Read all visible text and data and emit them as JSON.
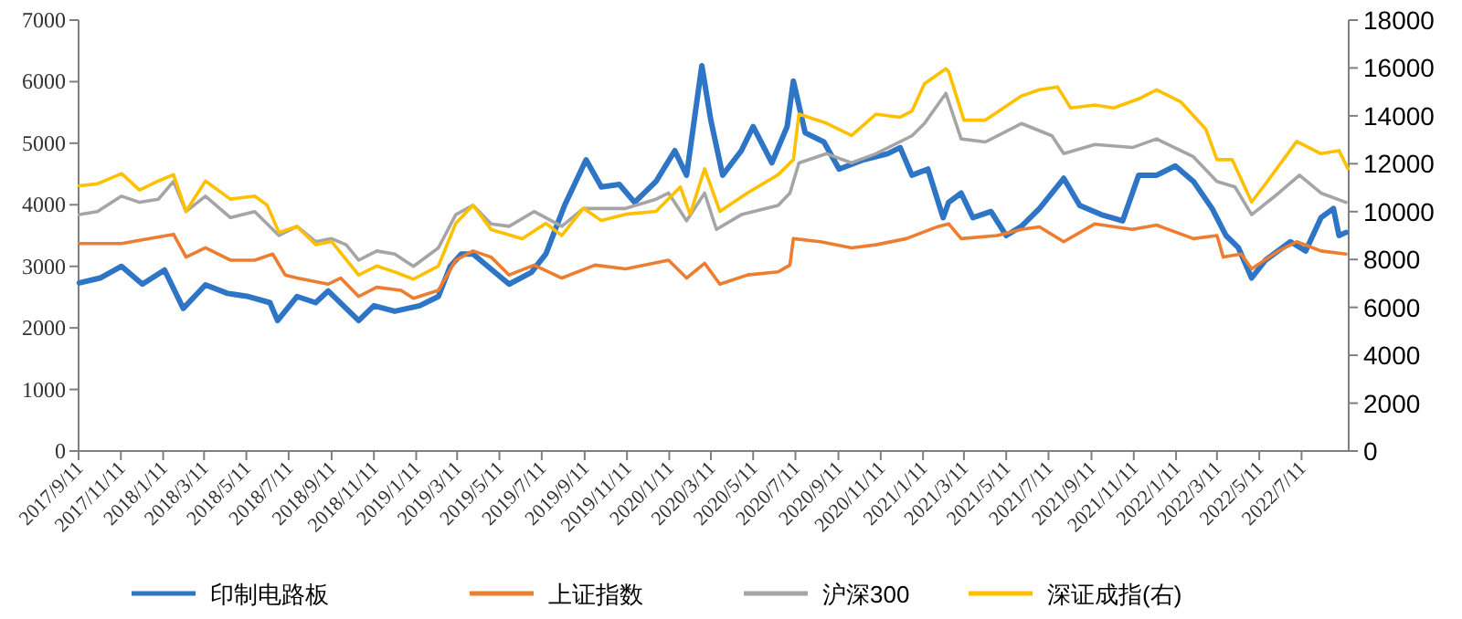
{
  "chart_data": {
    "type": "line",
    "xlim": [
      "2017-09-11",
      "2022-09-17"
    ],
    "xticks": [
      {
        "value": "2017-09-11",
        "label": "2017/9/11"
      },
      {
        "value": "2017-11-11",
        "label": "2017/11/11"
      },
      {
        "value": "2018-01-11",
        "label": "2018/1/11"
      },
      {
        "value": "2018-03-11",
        "label": "2018/3/11"
      },
      {
        "value": "2018-05-11",
        "label": "2018/5/11"
      },
      {
        "value": "2018-07-11",
        "label": "2018/7/11"
      },
      {
        "value": "2018-09-11",
        "label": "2018/9/11"
      },
      {
        "value": "2018-11-11",
        "label": "2018/11/11"
      },
      {
        "value": "2019-01-11",
        "label": "2019/1/11"
      },
      {
        "value": "2019-03-11",
        "label": "2019/3/11"
      },
      {
        "value": "2019-05-11",
        "label": "2019/5/11"
      },
      {
        "value": "2019-07-11",
        "label": "2019/7/11"
      },
      {
        "value": "2019-09-11",
        "label": "2019/9/11"
      },
      {
        "value": "2019-11-11",
        "label": "2019/11/11"
      },
      {
        "value": "2020-01-11",
        "label": "2020/1/11"
      },
      {
        "value": "2020-03-11",
        "label": "2020/3/11"
      },
      {
        "value": "2020-05-11",
        "label": "2020/5/11"
      },
      {
        "value": "2020-07-11",
        "label": "2020/7/11"
      },
      {
        "value": "2020-09-11",
        "label": "2020/9/11"
      },
      {
        "value": "2020-11-11",
        "label": "2020/11/11"
      },
      {
        "value": "2021-01-11",
        "label": "2021/1/11"
      },
      {
        "value": "2021-03-11",
        "label": "2021/3/11"
      },
      {
        "value": "2021-05-11",
        "label": "2021/5/11"
      },
      {
        "value": "2021-07-11",
        "label": "2021/7/11"
      },
      {
        "value": "2021-09-11",
        "label": "2021/9/11"
      },
      {
        "value": "2021-11-11",
        "label": "2021/11/11"
      },
      {
        "value": "2022-01-11",
        "label": "2022/1/11"
      },
      {
        "value": "2022-03-11",
        "label": "2022/3/11"
      },
      {
        "value": "2022-05-11",
        "label": "2022/5/11"
      },
      {
        "value": "2022-07-11",
        "label": "2022/7/11"
      }
    ],
    "ylim": [
      0,
      7000
    ],
    "yticks": [
      0,
      1000,
      2000,
      3000,
      4000,
      5000,
      6000,
      7000
    ],
    "y2lim": [
      0,
      18000
    ],
    "y2ticks": [
      0,
      2000,
      4000,
      6000,
      8000,
      10000,
      12000,
      14000,
      16000,
      18000
    ],
    "grid": false,
    "legend": "bottom",
    "marker": "none",
    "line_style": "solid",
    "series": [
      {
        "name": "印制电路板",
        "color": "#2e75c6",
        "x": [
          "2017-09-12",
          "2017-10-12",
          "2017-11-12",
          "2017-12-12",
          "2018-01-13",
          "2018-02-09",
          "2018-03-13",
          "2018-04-14",
          "2018-05-14",
          "2018-06-14",
          "2018-06-25",
          "2018-07-23",
          "2018-08-19",
          "2018-09-06",
          "2018-10-20",
          "2018-11-11",
          "2018-12-11",
          "2019-01-16",
          "2019-02-12",
          "2019-03-01",
          "2019-03-17",
          "2019-04-03",
          "2019-04-29",
          "2019-05-25",
          "2019-06-26",
          "2019-07-17",
          "2019-08-13",
          "2019-09-13",
          "2019-10-05",
          "2019-10-31",
          "2019-11-22",
          "2019-12-23",
          "2020-01-19",
          "2020-02-05",
          "2020-02-27",
          "2020-03-11",
          "2020-03-28",
          "2020-04-24",
          "2020-05-11",
          "2020-06-07",
          "2020-06-29",
          "2020-07-08",
          "2020-07-25",
          "2020-08-21",
          "2020-09-12",
          "2020-10-17",
          "2020-11-21",
          "2020-12-09",
          "2020-12-26",
          "2021-01-18",
          "2021-02-09",
          "2021-02-17",
          "2021-03-07",
          "2021-03-24",
          "2021-04-19",
          "2021-05-11",
          "2021-06-02",
          "2021-06-28",
          "2021-08-02",
          "2021-08-25",
          "2021-09-25",
          "2021-10-26",
          "2021-11-18",
          "2021-12-14",
          "2022-01-10",
          "2022-02-05",
          "2022-03-04",
          "2022-03-24",
          "2022-04-11",
          "2022-04-30",
          "2022-05-20",
          "2022-06-25",
          "2022-07-17",
          "2022-08-08",
          "2022-08-26",
          "2022-09-03",
          "2022-09-13"
        ],
        "values": [
          2730,
          2810,
          3000,
          2710,
          2940,
          2315,
          2700,
          2560,
          2510,
          2410,
          2120,
          2510,
          2410,
          2600,
          2120,
          2360,
          2270,
          2360,
          2510,
          3000,
          3200,
          3200,
          2955,
          2710,
          2900,
          3200,
          3990,
          4730,
          4290,
          4330,
          4040,
          4380,
          4880,
          4480,
          6260,
          5370,
          4480,
          4880,
          5270,
          4680,
          5270,
          6010,
          5170,
          5020,
          4580,
          4730,
          4830,
          4930,
          4480,
          4580,
          3790,
          4040,
          4190,
          3790,
          3890,
          3500,
          3650,
          3940,
          4430,
          3990,
          3840,
          3740,
          4480,
          4480,
          4630,
          4380,
          3940,
          3500,
          3300,
          2810,
          3100,
          3400,
          3250,
          3790,
          3940,
          3500,
          3550
        ]
      },
      {
        "name": "上证指数",
        "color": "#ed7d31",
        "x": [
          "2017-09-12",
          "2017-11-12",
          "2017-12-17",
          "2018-01-26",
          "2018-02-13",
          "2018-03-13",
          "2018-04-18",
          "2018-05-23",
          "2018-06-18",
          "2018-07-06",
          "2018-07-23",
          "2018-09-06",
          "2018-09-24",
          "2018-10-20",
          "2018-11-15",
          "2018-12-20",
          "2019-01-07",
          "2019-02-12",
          "2019-03-09",
          "2019-04-03",
          "2019-04-29",
          "2019-05-25",
          "2019-06-30",
          "2019-08-09",
          "2019-09-26",
          "2019-11-09",
          "2020-01-10",
          "2020-02-05",
          "2020-03-02",
          "2020-03-24",
          "2020-05-03",
          "2020-06-16",
          "2020-07-03",
          "2020-07-08",
          "2020-08-16",
          "2020-09-30",
          "2020-11-04",
          "2020-12-18",
          "2021-01-31",
          "2021-02-17",
          "2021-03-07",
          "2021-04-28",
          "2021-06-02",
          "2021-06-28",
          "2021-08-02",
          "2021-09-16",
          "2021-11-09",
          "2021-12-14",
          "2022-02-05",
          "2022-03-11",
          "2022-03-20",
          "2022-04-15",
          "2022-04-30",
          "2022-06-08",
          "2022-07-04",
          "2022-08-08",
          "2022-09-13"
        ],
        "values": [
          3370,
          3370,
          3440,
          3520,
          3150,
          3300,
          3100,
          3100,
          3200,
          2860,
          2810,
          2710,
          2810,
          2510,
          2660,
          2610,
          2480,
          2610,
          3100,
          3250,
          3150,
          2860,
          3020,
          2810,
          3020,
          2960,
          3100,
          2810,
          3050,
          2710,
          2860,
          2910,
          3020,
          3450,
          3400,
          3300,
          3350,
          3450,
          3640,
          3690,
          3450,
          3500,
          3600,
          3640,
          3400,
          3690,
          3600,
          3670,
          3450,
          3500,
          3150,
          3200,
          2960,
          3250,
          3400,
          3250,
          3200
        ]
      },
      {
        "name": "沪深300",
        "color": "#a5a5a5",
        "x": [
          "2017-09-12",
          "2017-10-08",
          "2017-11-12",
          "2017-12-08",
          "2018-01-04",
          "2018-01-26",
          "2018-02-13",
          "2018-03-13",
          "2018-04-18",
          "2018-05-23",
          "2018-06-27",
          "2018-07-23",
          "2018-08-19",
          "2018-09-11",
          "2018-10-02",
          "2018-10-20",
          "2018-11-15",
          "2018-12-11",
          "2019-01-07",
          "2019-02-12",
          "2019-03-09",
          "2019-04-03",
          "2019-04-29",
          "2019-05-25",
          "2019-06-30",
          "2019-08-09",
          "2019-09-09",
          "2019-11-09",
          "2019-12-23",
          "2020-01-10",
          "2020-02-05",
          "2020-03-02",
          "2020-03-19",
          "2020-04-24",
          "2020-06-16",
          "2020-07-03",
          "2020-07-16",
          "2020-08-25",
          "2020-09-30",
          "2020-11-04",
          "2020-12-26",
          "2021-01-13",
          "2021-02-13",
          "2021-03-07",
          "2021-04-11",
          "2021-06-02",
          "2021-07-16",
          "2021-08-02",
          "2021-09-16",
          "2021-11-09",
          "2021-12-14",
          "2022-02-05",
          "2022-03-11",
          "2022-04-06",
          "2022-04-30",
          "2022-06-08",
          "2022-07-08",
          "2022-08-08",
          "2022-09-13"
        ],
        "values": [
          3840,
          3890,
          4140,
          4040,
          4090,
          4380,
          3890,
          4140,
          3790,
          3890,
          3500,
          3650,
          3400,
          3450,
          3350,
          3100,
          3250,
          3200,
          3000,
          3300,
          3840,
          3990,
          3690,
          3650,
          3890,
          3650,
          3940,
          3940,
          4090,
          4190,
          3740,
          4190,
          3600,
          3840,
          3990,
          4190,
          4680,
          4830,
          4680,
          4830,
          5120,
          5320,
          5810,
          5070,
          5020,
          5320,
          5120,
          4830,
          4980,
          4930,
          5070,
          4780,
          4380,
          4290,
          3840,
          4190,
          4480,
          4190,
          4040
        ]
      },
      {
        "name": "深证成指(右)",
        "color": "#ffc000",
        "axis": "y2",
        "x": [
          "2017-09-12",
          "2017-10-08",
          "2017-11-12",
          "2017-12-08",
          "2018-01-04",
          "2018-01-26",
          "2018-02-13",
          "2018-03-13",
          "2018-04-18",
          "2018-05-23",
          "2018-06-10",
          "2018-06-27",
          "2018-07-23",
          "2018-08-19",
          "2018-09-11",
          "2018-10-02",
          "2018-10-20",
          "2018-11-15",
          "2018-12-11",
          "2019-01-07",
          "2019-02-12",
          "2019-03-09",
          "2019-04-03",
          "2019-04-29",
          "2019-06-13",
          "2019-07-17",
          "2019-08-09",
          "2019-09-09",
          "2019-10-05",
          "2019-11-09",
          "2019-12-23",
          "2020-01-27",
          "2020-02-10",
          "2020-03-02",
          "2020-03-24",
          "2020-05-03",
          "2020-06-16",
          "2020-07-08",
          "2020-07-16",
          "2020-08-25",
          "2020-09-30",
          "2020-11-04",
          "2020-12-09",
          "2020-12-26",
          "2021-01-13",
          "2021-02-13",
          "2021-02-17",
          "2021-03-11",
          "2021-04-11",
          "2021-05-07",
          "2021-06-02",
          "2021-06-28",
          "2021-07-24",
          "2021-08-12",
          "2021-09-16",
          "2021-10-13",
          "2021-11-18",
          "2021-12-14",
          "2022-01-18",
          "2022-02-23",
          "2022-03-11",
          "2022-04-02",
          "2022-04-30",
          "2022-05-20",
          "2022-07-04",
          "2022-08-08",
          "2022-09-03",
          "2022-09-16"
        ],
        "values": [
          11080,
          11160,
          11590,
          10900,
          11280,
          11540,
          10010,
          11280,
          10520,
          10650,
          10270,
          9130,
          9380,
          8620,
          8750,
          7990,
          7350,
          7730,
          7480,
          7180,
          7730,
          9510,
          10270,
          9250,
          8870,
          9510,
          9000,
          10140,
          9630,
          9890,
          10010,
          11030,
          9890,
          11790,
          10010,
          10780,
          11540,
          12170,
          14070,
          13690,
          13180,
          14070,
          13940,
          14200,
          15340,
          15970,
          15850,
          13820,
          13820,
          14330,
          14830,
          15090,
          15210,
          14330,
          14450,
          14330,
          14710,
          15090,
          14580,
          13440,
          12170,
          12170,
          10400,
          11160,
          12930,
          12420,
          12550,
          11790
        ]
      }
    ]
  }
}
